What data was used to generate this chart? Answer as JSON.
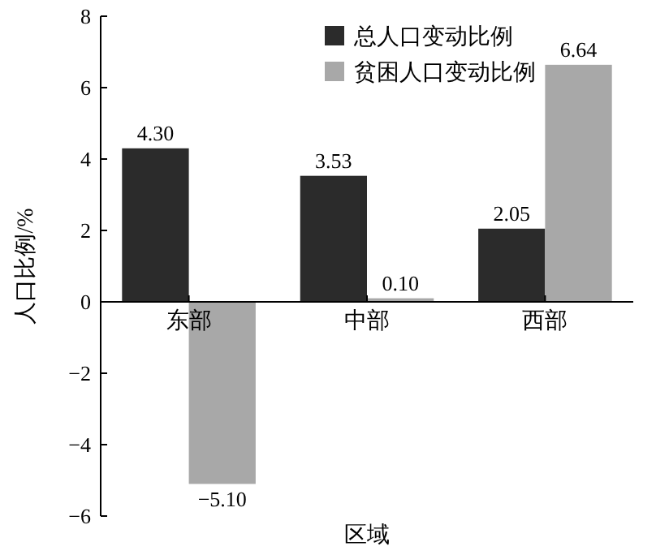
{
  "chart_data": {
    "type": "bar",
    "xlabel": "区域",
    "ylabel": "人口比例/%",
    "categories": [
      "东部",
      "中部",
      "西部"
    ],
    "series": [
      {
        "name": "总人口变动比例",
        "color": "#2b2b2b",
        "values": [
          4.3,
          3.53,
          2.05
        ],
        "value_labels": [
          "4.30",
          "3.53",
          "2.05"
        ]
      },
      {
        "name": "贫困人口变动比例",
        "color": "#a8a8a8",
        "values": [
          -5.1,
          0.1,
          6.64
        ],
        "value_labels": [
          "−5.10",
          "0.10",
          "6.64"
        ]
      }
    ],
    "ylim": [
      -6,
      8
    ],
    "yticks": [
      -6,
      -4,
      -2,
      0,
      2,
      4,
      6,
      8
    ],
    "legend": "top right",
    "grid": false
  }
}
